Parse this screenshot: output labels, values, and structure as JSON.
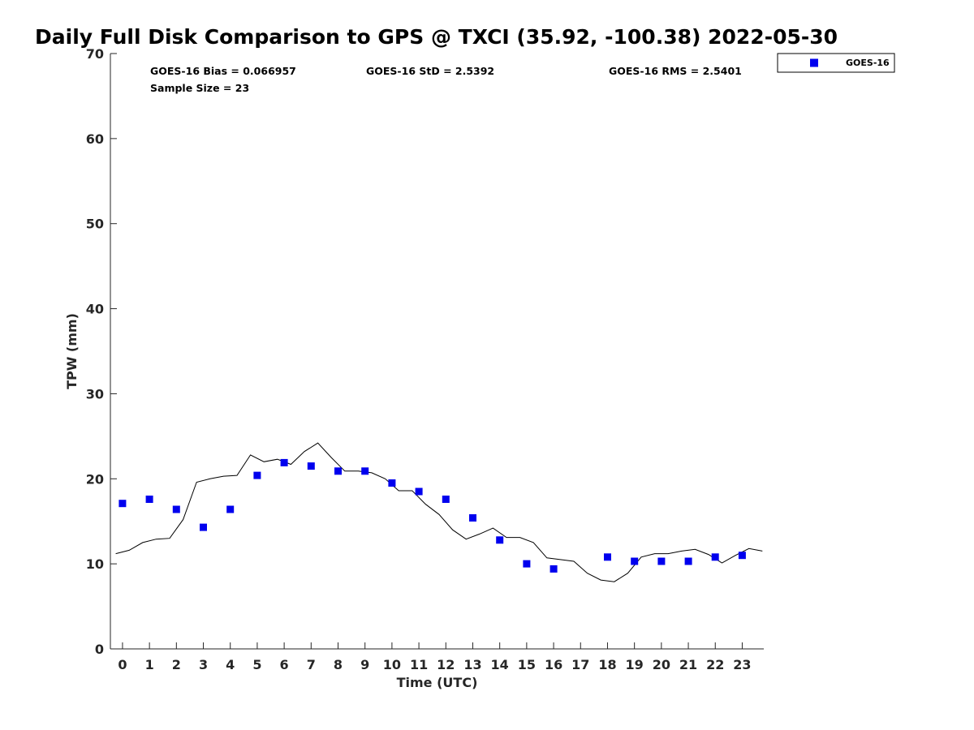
{
  "colors": {
    "marker": "#0000ee",
    "line": "#000000",
    "axis": "#262626"
  },
  "chart_data": {
    "type": "scatter",
    "title": "Daily Full Disk Comparison to GPS @ TXCI (35.92, -100.38) 2022-05-30",
    "xlabel": "Time (UTC)",
    "ylabel": "TPW (mm)",
    "ylim": [
      0,
      70
    ],
    "yticks": [
      0,
      10,
      20,
      30,
      40,
      50,
      60,
      70
    ],
    "xlim": [
      -0.45,
      23.8
    ],
    "xtick_values": [
      0,
      1,
      2,
      3,
      4,
      5,
      6,
      7,
      8,
      9,
      10,
      11,
      12,
      13,
      14,
      15,
      16,
      17,
      18,
      19,
      20,
      21,
      22,
      23
    ],
    "xtick_labels": [
      "0",
      "1",
      "2",
      "3",
      "4",
      "5",
      "6",
      "7",
      "18",
      "19",
      "20",
      "21",
      "22",
      "23"
    ],
    "xtick_labels_full": [
      "0",
      "1",
      "2",
      "3",
      "4",
      "5",
      "6",
      "7",
      "8",
      "9",
      "10",
      "11",
      "12",
      "13",
      "14",
      "15",
      "16",
      "17",
      "18",
      "19",
      "20",
      "21",
      "22",
      "23"
    ],
    "grid": false,
    "legend_position": "top-right (outside plot)",
    "legend_entries": [
      "GOES-16"
    ],
    "stats": {
      "bias": "GOES-16 Bias = 0.066957",
      "std": "GOES-16 StD = 2.5392",
      "rms": "GOES-16 RMS = 2.5401",
      "sample_size": "Sample Size = 23"
    },
    "series": [
      {
        "name": "GOES-16",
        "kind": "markers",
        "x": [
          0,
          1,
          2,
          3,
          4,
          5,
          6,
          7,
          8,
          9,
          10,
          11,
          12,
          13,
          14,
          15,
          16,
          18,
          19,
          20,
          21,
          22,
          23
        ],
        "y": [
          17.1,
          17.6,
          16.4,
          14.3,
          16.4,
          20.4,
          21.9,
          21.5,
          20.9,
          20.9,
          19.5,
          18.5,
          17.6,
          15.4,
          12.8,
          10.0,
          9.4,
          10.8,
          10.3,
          10.3,
          10.3,
          10.8,
          11.0
        ]
      },
      {
        "kind": "line",
        "x": [
          -0.25,
          0.25,
          0.75,
          1.25,
          1.75,
          2.25,
          2.75,
          3.25,
          3.75,
          4.25,
          4.75,
          5.25,
          5.75,
          6.25,
          6.75,
          7.25,
          7.75,
          8.25,
          8.75,
          9.25,
          9.75,
          10.25,
          10.75,
          11.25,
          11.75,
          12.25,
          12.75,
          13.25,
          13.75,
          14.25,
          14.75,
          15.25,
          15.75,
          16.25,
          16.75,
          17.25,
          17.75,
          18.25,
          18.75,
          19.25,
          19.75,
          20.25,
          20.75,
          21.25,
          21.75,
          22.25,
          22.75,
          23.25,
          23.75
        ],
        "y": [
          11.2,
          11.6,
          12.5,
          12.9,
          13.0,
          15.2,
          19.6,
          20.0,
          20.3,
          20.4,
          22.8,
          22.0,
          22.3,
          21.7,
          23.2,
          24.2,
          22.5,
          20.9,
          20.9,
          20.7,
          20.0,
          18.6,
          18.6,
          17.0,
          15.8,
          14.0,
          12.9,
          13.5,
          14.2,
          13.1,
          13.1,
          12.5,
          10.7,
          10.5,
          10.3,
          8.9,
          8.1,
          7.9,
          8.9,
          10.8,
          11.2,
          11.2,
          11.5,
          11.7,
          11.1,
          10.1,
          11.0,
          11.8,
          11.5
        ]
      }
    ]
  }
}
